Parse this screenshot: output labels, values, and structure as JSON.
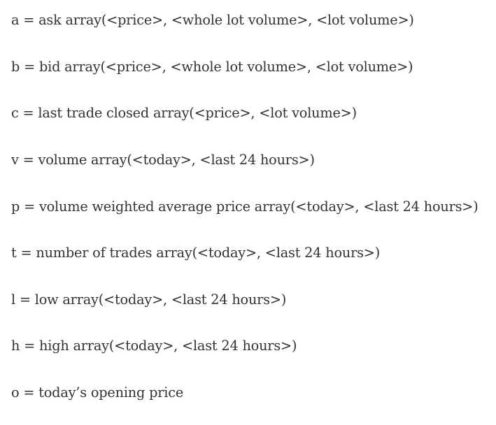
{
  "definitions": [
    {
      "text": "a = ask array(<price>, <whole lot volume>, <lot volume>)"
    },
    {
      "text": "b = bid array(<price>, <whole lot volume>, <lot volume>)"
    },
    {
      "text": "c = last trade closed array(<price>, <lot volume>)"
    },
    {
      "text": "v = volume array(<today>, <last 24 hours>)"
    },
    {
      "text": "p = volume weighted average price array(<today>, <last 24 hours>)"
    },
    {
      "text": "t = number of trades array(<today>, <last 24 hours>)"
    },
    {
      "text": "l = low array(<today>, <last 24 hours>)"
    },
    {
      "text": "h = high array(<today>, <last 24 hours>)"
    },
    {
      "text": "o = today’s opening price"
    }
  ]
}
